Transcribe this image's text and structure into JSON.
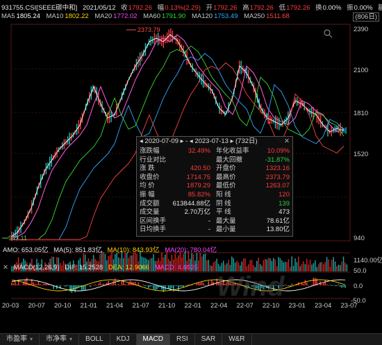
{
  "header": {
    "code_name": "931755.CSI[SEEE碳中和]",
    "date": "2021/05/12",
    "close_label": "收",
    "close": "1792.26",
    "change_label": "幅",
    "change": "0.13%(2.29)",
    "open_label": "开",
    "open": "1792.26",
    "high_label": "高",
    "high": "1792.26",
    "low_label": "低",
    "low": "1792.26",
    "turnover_label": "换",
    "turnover": "0.00%",
    "amplitude_label": "振",
    "amplitude": "0.00%",
    "vol_label": "额",
    "period": "(806日)"
  },
  "ma": [
    {
      "name": "MA5",
      "value": "1805.24",
      "color": "#ffffff"
    },
    {
      "name": "MA10",
      "value": "1802.22",
      "color": "#ffd700"
    },
    {
      "name": "MA20",
      "value": "1772.02",
      "color": "#ff44ff"
    },
    {
      "name": "MA60",
      "value": "1791.90",
      "color": "#33dd33"
    },
    {
      "name": "MA120",
      "value": "1753.49",
      "color": "#33aaff"
    },
    {
      "name": "MA250",
      "value": "1511.68",
      "color": "#ff4444"
    }
  ],
  "price_axis": [
    "2390",
    "2100",
    "1810",
    "1520",
    "940"
  ],
  "price_max_label": "2373.79",
  "price_min_label": "943.11",
  "popup": {
    "start": "2020-07-09",
    "end": "2023-07-13",
    "days": "(732日)",
    "rows": [
      {
        "l1": "涨跌幅",
        "v1": "32.49%",
        "c1": "red",
        "l2": "年化收益率",
        "v2": "10.09%",
        "c2": "red"
      },
      {
        "l1": "行业对比",
        "v1": "",
        "c1": "white",
        "l2": "最大回撤",
        "v2": "-31.87%",
        "c2": "green"
      },
      {
        "l1": "涨  跌",
        "v1": "420.50",
        "c1": "red",
        "l2": "开盘价",
        "v2": "1323.16",
        "c2": "red"
      },
      {
        "l1": "收盘价",
        "v1": "1714.75",
        "c1": "red",
        "l2": "最高价",
        "v2": "2373.79",
        "c2": "red"
      },
      {
        "l1": "均  价",
        "v1": "1879.29",
        "c1": "red",
        "l2": "最低价",
        "v2": "1263.07",
        "c2": "red"
      },
      {
        "l1": "振  幅",
        "v1": "85.82%",
        "c1": "red",
        "l2": "阳  线",
        "v2": "120",
        "c2": "red"
      },
      {
        "l1": "成交额",
        "v1": "613844.88亿",
        "c1": "white",
        "l2": "阴  线",
        "v2": "139",
        "c2": "green"
      },
      {
        "l1": "成交量",
        "v1": "2.70万亿",
        "c1": "white",
        "l2": "平  线",
        "v2": "473",
        "c2": "white"
      },
      {
        "l1": "区间换手",
        "v1": "-",
        "c1": "white",
        "l2": "最大量",
        "v2": "78.61亿",
        "c2": "white"
      },
      {
        "l1": "日均换手",
        "v1": "-",
        "c1": "white",
        "l2": "最小量",
        "v2": "13.80亿",
        "c2": "white"
      }
    ]
  },
  "amo": {
    "label": "AMO: 653.05亿",
    "ma5": "MA(5): 851.83亿",
    "ma10": "MA(10): 843.93亿",
    "ma20": "MA(20): 780.04亿",
    "axis_top": "1140.00亿"
  },
  "macd": {
    "label": "MACD(12,26,9)",
    "dif": "DIF: 15.2528",
    "dea": "DEA: 12.9066",
    "macd": "MACD: 4.6925",
    "axis": [
      "50.0",
      "0.0",
      "-50.0"
    ]
  },
  "x_axis": [
    "20-03",
    "20-07",
    "20-10",
    "21-01",
    "21-04",
    "21-07",
    "21-10",
    "22-01",
    "22-04",
    "22-07",
    "22-10",
    "23-01",
    "23-04",
    "23-07"
  ],
  "tabs": [
    "市盈率",
    "市净率",
    "BOLL",
    "KDJ",
    "MACD",
    "RSI",
    "SAR",
    "W&R"
  ],
  "active_tab": "MACD",
  "watermark": "Wind"
}
